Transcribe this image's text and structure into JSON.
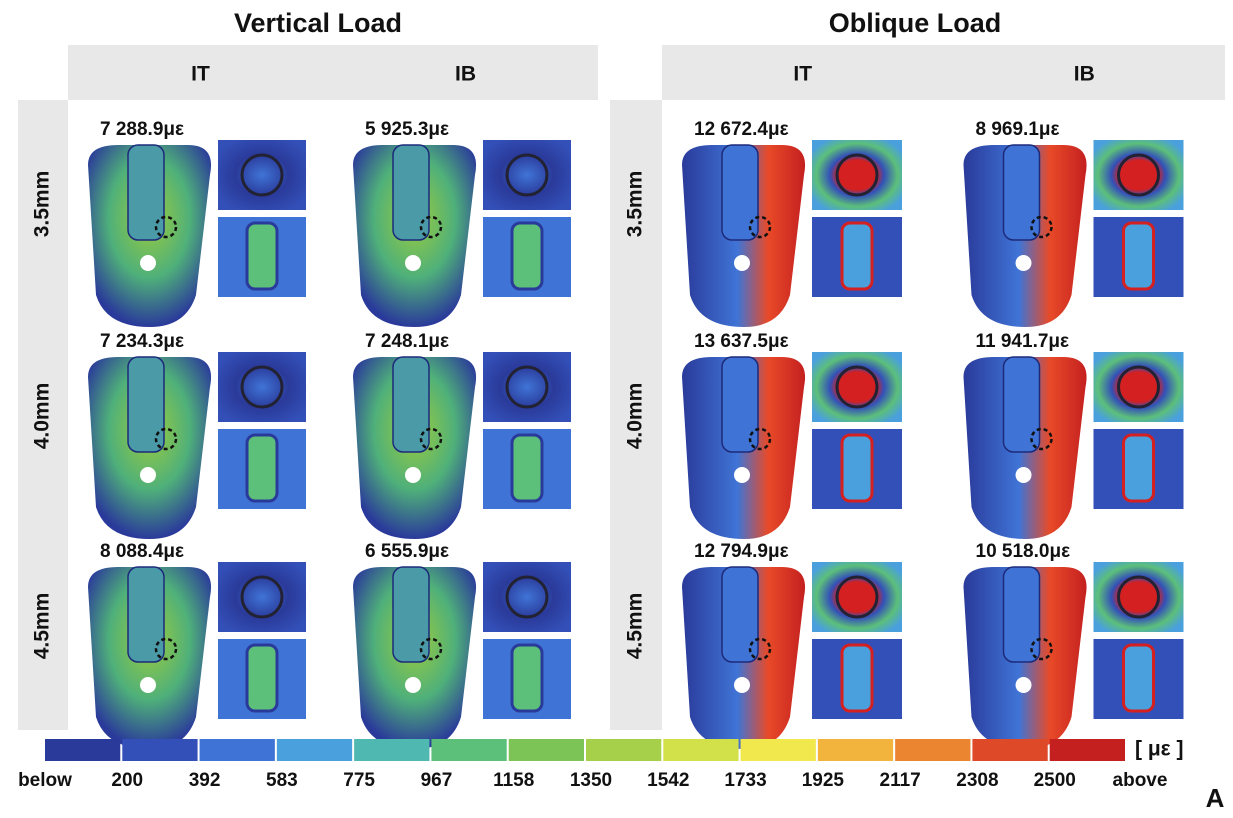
{
  "panels": [
    {
      "title": "Vertical Load",
      "columns": [
        "IT",
        "IB"
      ],
      "rows": [
        {
          "label": "3.5mm",
          "values": [
            "7 288.9με",
            "5 925.3με"
          ]
        },
        {
          "label": "4.0mm",
          "values": [
            "7 234.3με",
            "7 248.1με"
          ]
        },
        {
          "label": "4.5mm",
          "values": [
            "8 088.4με",
            "6 555.9με"
          ]
        }
      ]
    },
    {
      "title": "Oblique Load",
      "columns": [
        "IT",
        "IB"
      ],
      "rows": [
        {
          "label": "3.5mm",
          "values": [
            "12 672.4με",
            "8 969.1με"
          ]
        },
        {
          "label": "4.0mm",
          "values": [
            "13 637.5με",
            "11 941.7με"
          ]
        },
        {
          "label": "4.5mm",
          "values": [
            "12 794.9με",
            "10 518.0με"
          ]
        }
      ]
    }
  ],
  "colorbar": {
    "labels": [
      "below",
      "200",
      "392",
      "583",
      "775",
      "967",
      "1158",
      "1350",
      "1542",
      "1733",
      "1925",
      "2117",
      "2308",
      "2500",
      "above"
    ],
    "unit": "[ με ]",
    "colors": [
      "#2a3a9a",
      "#3350b8",
      "#3f74d6",
      "#4aa0dc",
      "#4fb8b0",
      "#5cbf7a",
      "#7cc455",
      "#a6d04a",
      "#d2e04a",
      "#f0e84c",
      "#f2b43c",
      "#ec8530",
      "#de4a28",
      "#c42020"
    ]
  },
  "panel_label": "A"
}
